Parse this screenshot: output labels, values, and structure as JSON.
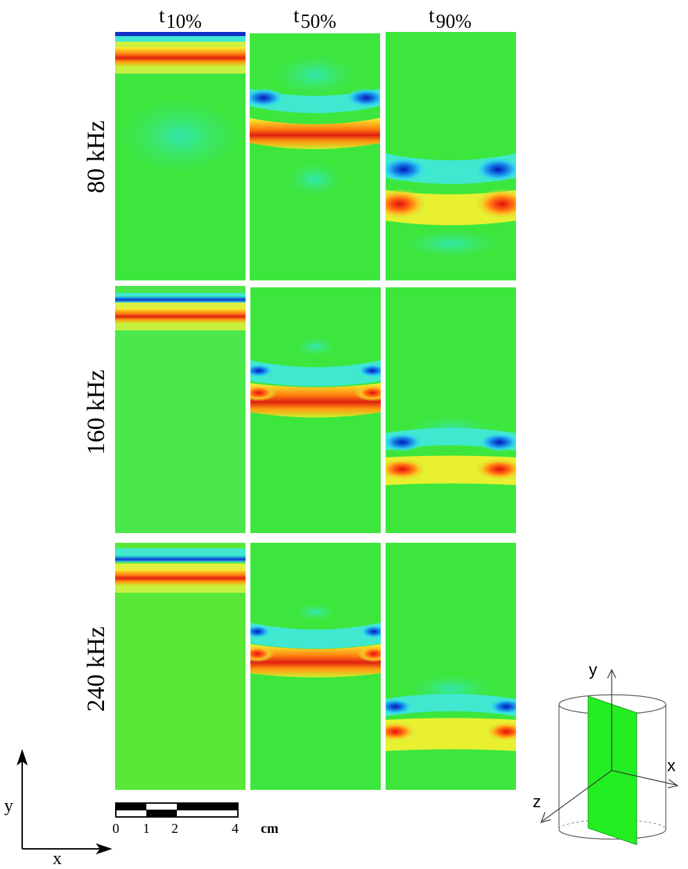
{
  "columns": {
    "t10": {
      "base": "t",
      "sub": "10%"
    },
    "t50": {
      "base": "t",
      "sub": "50%"
    },
    "t90": {
      "base": "t",
      "sub": "90%"
    }
  },
  "rows": {
    "r80": "80 kHz",
    "r160": "160 kHz",
    "r240": "240 kHz"
  },
  "scale_bar": {
    "ticks": [
      "0",
      "1",
      "2",
      "4"
    ],
    "unit": "cm"
  },
  "axes": {
    "x": "x",
    "y": "y"
  },
  "inset_axes": {
    "x": "x",
    "y": "y",
    "z": "z"
  },
  "colors": {
    "background_field": "#3de63d",
    "low": "#1030c8",
    "high": "#e02010",
    "slab": "#22ee22"
  }
}
